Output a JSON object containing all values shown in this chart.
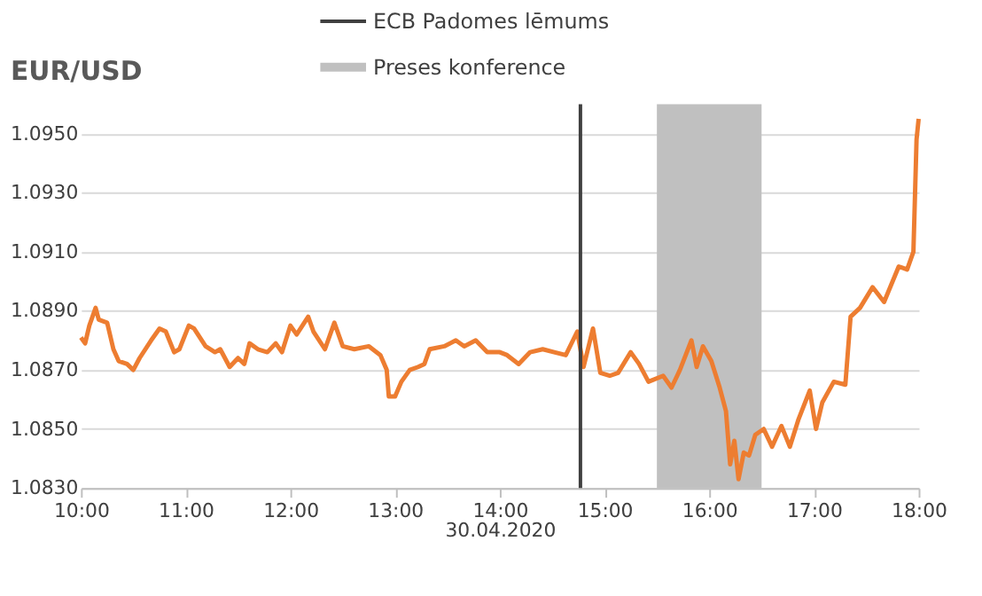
{
  "chart_data": {
    "type": "line",
    "title": "EUR/USD",
    "xlabel": "30.04.2020",
    "x": [
      10.0,
      10.04,
      10.08,
      10.14,
      10.17,
      10.25,
      10.31,
      10.36,
      10.44,
      10.5,
      10.56,
      10.67,
      10.75,
      10.81,
      10.89,
      10.94,
      11.03,
      11.08,
      11.19,
      11.28,
      11.33,
      11.42,
      11.5,
      11.56,
      11.61,
      11.69,
      11.78,
      11.86,
      11.92,
      12.0,
      12.06,
      12.17,
      12.22,
      12.33,
      12.42,
      12.5,
      12.61,
      12.75,
      12.86,
      12.92,
      12.94,
      13.0,
      13.06,
      13.14,
      13.22,
      13.28,
      13.33,
      13.47,
      13.58,
      13.66,
      13.77,
      13.88,
      14.0,
      14.07,
      14.18,
      14.29,
      14.41,
      14.52,
      14.63,
      14.74,
      14.8,
      14.89,
      14.96,
      15.05,
      15.13,
      15.25,
      15.33,
      15.42,
      15.56,
      15.64,
      15.72,
      15.83,
      15.88,
      15.94,
      16.02,
      16.1,
      16.16,
      16.2,
      16.24,
      16.28,
      16.33,
      16.38,
      16.44,
      16.52,
      16.6,
      16.69,
      16.77,
      16.85,
      16.96,
      17.02,
      17.08,
      17.19,
      17.3,
      17.35,
      17.44,
      17.56,
      17.67,
      17.81,
      17.89,
      17.95,
      17.98,
      18.0
    ],
    "series": [
      {
        "color": "#ed7d31",
        "values": [
          1.0881,
          1.0879,
          1.0885,
          1.0891,
          1.0887,
          1.0886,
          1.0877,
          1.0873,
          1.0872,
          1.087,
          1.0874,
          1.088,
          1.0884,
          1.0883,
          1.0876,
          1.0877,
          1.0885,
          1.0884,
          1.0878,
          1.0876,
          1.0877,
          1.0871,
          1.0874,
          1.0872,
          1.0879,
          1.0877,
          1.0876,
          1.0879,
          1.0876,
          1.0885,
          1.0882,
          1.0888,
          1.0883,
          1.0877,
          1.0886,
          1.0878,
          1.0877,
          1.0878,
          1.0875,
          1.087,
          1.0861,
          1.0861,
          1.0866,
          1.087,
          1.0871,
          1.0872,
          1.0877,
          1.0878,
          1.088,
          1.0878,
          1.088,
          1.0876,
          1.0876,
          1.0875,
          1.0872,
          1.0876,
          1.0877,
          1.0876,
          1.0875,
          1.0883,
          1.0871,
          1.0884,
          1.0869,
          1.0868,
          1.0869,
          1.0876,
          1.0872,
          1.0866,
          1.0868,
          1.0864,
          1.087,
          1.088,
          1.0871,
          1.0878,
          1.0873,
          1.0864,
          1.0856,
          1.0838,
          1.0846,
          1.0833,
          1.0842,
          1.0841,
          1.0848,
          1.085,
          1.0844,
          1.0851,
          1.0844,
          1.0853,
          1.0863,
          1.085,
          1.0859,
          1.0866,
          1.0865,
          1.0888,
          1.0891,
          1.0898,
          1.0893,
          1.0905,
          1.0904,
          1.091,
          1.0948,
          1.0955
        ]
      }
    ],
    "xlim": [
      10,
      18
    ],
    "xticks": [
      {
        "value": 10,
        "label": "10:00"
      },
      {
        "value": 11,
        "label": "11:00"
      },
      {
        "value": 12,
        "label": "12:00"
      },
      {
        "value": 13,
        "label": "13:00"
      },
      {
        "value": 14,
        "label": "14:00"
      },
      {
        "value": 15,
        "label": "15:00"
      },
      {
        "value": 16,
        "label": "16:00"
      },
      {
        "value": 17,
        "label": "17:00"
      },
      {
        "value": 18,
        "label": "18:00"
      }
    ],
    "ylim": [
      1.083,
      1.096
    ],
    "yticks": [
      {
        "value": 1.083,
        "label": "1.0830"
      },
      {
        "value": 1.085,
        "label": "1.0850"
      },
      {
        "value": 1.087,
        "label": "1.0870"
      },
      {
        "value": 1.089,
        "label": "1.0890"
      },
      {
        "value": 1.091,
        "label": "1.0910"
      },
      {
        "value": 1.093,
        "label": "1.0930"
      },
      {
        "value": 1.095,
        "label": "1.0950"
      }
    ],
    "ref_lines": [
      {
        "axis": "x",
        "value": 14.77,
        "label": "ECB Padomes lēmums",
        "color": "#404040"
      }
    ],
    "bands": [
      {
        "axis": "x",
        "from": 15.5,
        "to": 16.5,
        "label": "Preses konference",
        "color": "#c0c0c0"
      }
    ],
    "grid": "y",
    "legend": "top",
    "line_style": "solid",
    "marker": "none"
  }
}
